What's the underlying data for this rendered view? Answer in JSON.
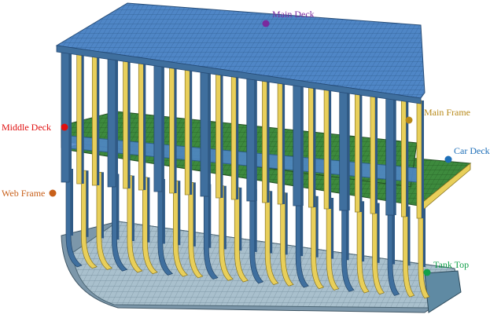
{
  "labels": {
    "main_deck": {
      "text": "Main Deck",
      "color": "#7a2a9e"
    },
    "main_frame": {
      "text": "Main Frame",
      "color": "#b88a1a"
    },
    "middle_deck": {
      "text": "Middle Deck",
      "color": "#e01010"
    },
    "car_deck": {
      "text": "Car Deck",
      "color": "#1e6fb8"
    },
    "web_frame": {
      "text": "Web Frame",
      "color": "#c8601a"
    },
    "tank_top": {
      "text": "Tank Top",
      "color": "#12a04a"
    }
  },
  "colors": {
    "deck_blue": "#4f86c6",
    "deck_green": "#3d8a3d",
    "frame_yellow": "#e8cf5a",
    "frame_blue": "#3f6f9e",
    "tank_top_gray": "#9ab3c2",
    "hull_gray": "#7c97aa"
  }
}
